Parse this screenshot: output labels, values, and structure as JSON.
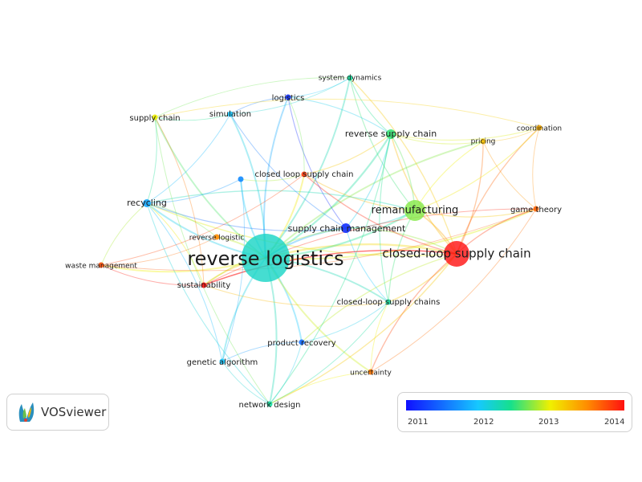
{
  "logo": {
    "text": "VOSviewer",
    "icon": "vosviewer-logo-icon"
  },
  "legend": {
    "ticks": [
      "2011",
      "2012",
      "2013",
      "2014"
    ],
    "colors": [
      "#1010ff",
      "#16c8ff",
      "#16e08c",
      "#f0f000",
      "#ff8c00",
      "#ff1010"
    ]
  },
  "nodes": [
    {
      "id": "reverse-logistics",
      "label": "reverse logistics",
      "year": 2011.9,
      "weight": 10
    },
    {
      "id": "closed-loop-supply-chain",
      "label": "closed-loop supply chain",
      "year": 2014.0,
      "weight": 5
    },
    {
      "id": "remanufacturing",
      "label": "remanufacturing",
      "year": 2012.5,
      "weight": 4
    },
    {
      "id": "supply-chain-management",
      "label": "supply chain management",
      "year": 2011.1,
      "weight": 3
    },
    {
      "id": "reverse-supply-chain",
      "label": "reverse supply chain",
      "year": 2012.3,
      "weight": 3
    },
    {
      "id": "recycling",
      "label": "recycling",
      "year": 2011.5,
      "weight": 2.5
    },
    {
      "id": "sustainability",
      "label": "sustainability",
      "year": 2014.2,
      "weight": 2
    },
    {
      "id": "closed-loop-supply-chains",
      "label": "closed-loop supply chains",
      "year": 2012.1,
      "weight": 2
    },
    {
      "id": "closed-loop-supply-chain-2",
      "label": "closed loop supply chain",
      "year": 2013.8,
      "weight": 1.8
    },
    {
      "id": "supply-chain",
      "label": "supply chain",
      "year": 2012.8,
      "weight": 1.5
    },
    {
      "id": "simulation",
      "label": "simulation",
      "year": 2011.6,
      "weight": 1.5
    },
    {
      "id": "logistics",
      "label": "logistics",
      "year": 2011.1,
      "weight": 1.6
    },
    {
      "id": "system-dynamics",
      "label": "system dynamics",
      "year": 2012.1,
      "weight": 1.4
    },
    {
      "id": "coordination",
      "label": "coordination",
      "year": 2013.2,
      "weight": 1.5
    },
    {
      "id": "pricing",
      "label": "pricing",
      "year": 2013.1,
      "weight": 1.3
    },
    {
      "id": "game-theory",
      "label": "game theory",
      "year": 2013.6,
      "weight": 1.5
    },
    {
      "id": "waste-management",
      "label": "waste management",
      "year": 2013.7,
      "weight": 1.3
    },
    {
      "id": "reverse-logistic",
      "label": "reverse logistic",
      "year": 2013.4,
      "weight": 1.3
    },
    {
      "id": "product-recovery",
      "label": "product recovery",
      "year": 2011.3,
      "weight": 1.6
    },
    {
      "id": "genetic-algorithm",
      "label": "genetic algorithm",
      "year": 2011.6,
      "weight": 1.6
    },
    {
      "id": "uncertainty",
      "label": "uncertainty",
      "year": 2013.5,
      "weight": 1.6
    },
    {
      "id": "network-design",
      "label": "network design",
      "year": 2012.1,
      "weight": 2
    },
    {
      "id": "unlabeled-node",
      "label": "",
      "year": 2011.4,
      "weight": 1.5
    }
  ],
  "edges": [
    [
      "reverse-logistics",
      "closed-loop-supply-chain"
    ],
    [
      "reverse-logistics",
      "remanufacturing"
    ],
    [
      "reverse-logistics",
      "supply-chain-management"
    ],
    [
      "reverse-logistics",
      "reverse-supply-chain"
    ],
    [
      "reverse-logistics",
      "recycling"
    ],
    [
      "reverse-logistics",
      "sustainability"
    ],
    [
      "reverse-logistics",
      "closed-loop-supply-chains"
    ],
    [
      "reverse-logistics",
      "closed-loop-supply-chain-2"
    ],
    [
      "reverse-logistics",
      "supply-chain"
    ],
    [
      "reverse-logistics",
      "simulation"
    ],
    [
      "reverse-logistics",
      "logistics"
    ],
    [
      "reverse-logistics",
      "system-dynamics"
    ],
    [
      "reverse-logistics",
      "waste-management"
    ],
    [
      "reverse-logistics",
      "reverse-logistic"
    ],
    [
      "reverse-logistics",
      "product-recovery"
    ],
    [
      "reverse-logistics",
      "genetic-algorithm"
    ],
    [
      "reverse-logistics",
      "network-design"
    ],
    [
      "reverse-logistics",
      "uncertainty"
    ],
    [
      "reverse-logistics",
      "unlabeled-node"
    ],
    [
      "reverse-logistics",
      "game-theory"
    ],
    [
      "reverse-logistics",
      "pricing"
    ],
    [
      "closed-loop-supply-chain",
      "remanufacturing"
    ],
    [
      "closed-loop-supply-chain",
      "game-theory"
    ],
    [
      "closed-loop-supply-chain",
      "pricing"
    ],
    [
      "closed-loop-supply-chain",
      "coordination"
    ],
    [
      "closed-loop-supply-chain",
      "supply-chain-management"
    ],
    [
      "closed-loop-supply-chain",
      "closed-loop-supply-chains"
    ],
    [
      "closed-loop-supply-chain",
      "uncertainty"
    ],
    [
      "closed-loop-supply-chain",
      "network-design"
    ],
    [
      "closed-loop-supply-chain",
      "sustainability"
    ],
    [
      "closed-loop-supply-chain",
      "reverse-supply-chain"
    ],
    [
      "closed-loop-supply-chain",
      "product-recovery"
    ],
    [
      "closed-loop-supply-chain",
      "recycling"
    ],
    [
      "remanufacturing",
      "reverse-supply-chain"
    ],
    [
      "remanufacturing",
      "supply-chain-management"
    ],
    [
      "remanufacturing",
      "game-theory"
    ],
    [
      "remanufacturing",
      "pricing"
    ],
    [
      "remanufacturing",
      "coordination"
    ],
    [
      "remanufacturing",
      "closed-loop-supply-chain-2"
    ],
    [
      "remanufacturing",
      "closed-loop-supply-chains"
    ],
    [
      "remanufacturing",
      "system-dynamics"
    ],
    [
      "remanufacturing",
      "recycling"
    ],
    [
      "supply-chain-management",
      "logistics"
    ],
    [
      "supply-chain-management",
      "reverse-supply-chain"
    ],
    [
      "supply-chain-management",
      "recycling"
    ],
    [
      "supply-chain-management",
      "closed-loop-supply-chains"
    ],
    [
      "supply-chain-management",
      "simulation"
    ],
    [
      "supply-chain-management",
      "sustainability"
    ],
    [
      "recycling",
      "sustainability"
    ],
    [
      "recycling",
      "waste-management"
    ],
    [
      "recycling",
      "reverse-logistic"
    ],
    [
      "recycling",
      "supply-chain"
    ],
    [
      "recycling",
      "genetic-algorithm"
    ],
    [
      "recycling",
      "simulation"
    ],
    [
      "sustainability",
      "waste-management"
    ],
    [
      "sustainability",
      "closed-loop-supply-chains"
    ],
    [
      "sustainability",
      "closed-loop-supply-chain"
    ],
    [
      "waste-management",
      "reverse-logistic"
    ],
    [
      "network-design",
      "genetic-algorithm"
    ],
    [
      "network-design",
      "product-recovery"
    ],
    [
      "network-design",
      "uncertainty"
    ],
    [
      "network-design",
      "closed-loop-supply-chains"
    ],
    [
      "network-design",
      "recycling"
    ],
    [
      "network-design",
      "reverse-supply-chain"
    ],
    [
      "genetic-algorithm",
      "product-recovery"
    ],
    [
      "product-recovery",
      "closed-loop-supply-chains"
    ],
    [
      "uncertainty",
      "closed-loop-supply-chains"
    ],
    [
      "uncertainty",
      "game-theory"
    ],
    [
      "system-dynamics",
      "logistics"
    ],
    [
      "system-dynamics",
      "reverse-supply-chain"
    ],
    [
      "system-dynamics",
      "simulation"
    ],
    [
      "system-dynamics",
      "supply-chain"
    ],
    [
      "system-dynamics",
      "closed-loop-supply-chain"
    ],
    [
      "logistics",
      "simulation"
    ],
    [
      "logistics",
      "closed-loop-supply-chain-2"
    ],
    [
      "supply-chain",
      "simulation"
    ],
    [
      "supply-chain",
      "sustainability"
    ],
    [
      "supply-chain",
      "network-design"
    ],
    [
      "coordination",
      "pricing"
    ],
    [
      "coordination",
      "game-theory"
    ],
    [
      "coordination",
      "reverse-supply-chain"
    ],
    [
      "pricing",
      "game-theory"
    ],
    [
      "pricing",
      "reverse-supply-chain"
    ],
    [
      "reverse-supply-chain",
      "closed-loop-supply-chains"
    ],
    [
      "reverse-supply-chain",
      "closed-loop-supply-chain-2"
    ],
    [
      "reverse-supply-chain",
      "logistics"
    ],
    [
      "unlabeled-node",
      "recycling"
    ],
    [
      "unlabeled-node",
      "closed-loop-supply-chain-2"
    ],
    [
      "unlabeled-node",
      "genetic-algorithm"
    ],
    [
      "closed-loop-supply-chain-2",
      "closed-loop-supply-chain"
    ],
    [
      "closed-loop-supply-chain-2",
      "waste-management"
    ],
    [
      "game-theory",
      "sustainability"
    ],
    [
      "game-theory",
      "waste-management"
    ],
    [
      "coordination",
      "supply-chain"
    ]
  ]
}
